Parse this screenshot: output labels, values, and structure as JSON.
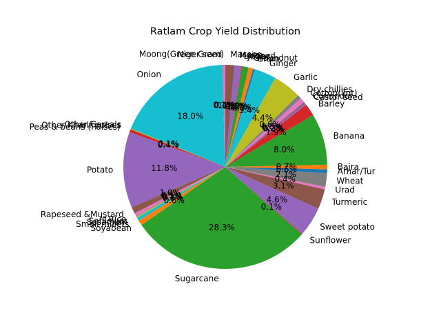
{
  "chart_data": {
    "type": "pie",
    "title": "Ratlam Crop Yield Distribution",
    "start_angle_deg": 90,
    "direction": "counterclockwise",
    "slices": [
      {
        "label": "Moong(Green Gram)",
        "value": 0.4,
        "pct_text": "0.4%",
        "color": "#e377c2"
      },
      {
        "label": "Niger seed",
        "value": 0.1,
        "pct_text": "0.1%",
        "color": "#7f7f7f"
      },
      {
        "label": "Onion",
        "value": 18.0,
        "pct_text": "18.0%",
        "color": "#17becf"
      },
      {
        "label": "Other Cereals",
        "value": 0.1,
        "pct_text": "0.1%",
        "color": "#bcbd22"
      },
      {
        "label": "Other Kharif pulses",
        "value": 0.1,
        "pct_text": "0.1%",
        "color": "#8c564b"
      },
      {
        "label": "Peas & beans (Pulses)",
        "value": 0.4,
        "pct_text": "0.4%",
        "color": "#d62728"
      },
      {
        "label": "Potato",
        "value": 11.8,
        "pct_text": "11.8%",
        "color": "#9467bd"
      },
      {
        "label": "Rapeseed &Mustard",
        "value": 1.0,
        "pct_text": "1.0%",
        "color": "#8c564b"
      },
      {
        "label": "Rice",
        "value": 0.5,
        "pct_text": "0.5%",
        "color": "#e377c2"
      },
      {
        "label": "Safflower",
        "value": 0.1,
        "pct_text": "0.1%",
        "color": "#7f7f7f"
      },
      {
        "label": "Sesamum",
        "value": 0.2,
        "pct_text": "0.2%",
        "color": "#bcbd22"
      },
      {
        "label": "Small millets",
        "value": 0.5,
        "pct_text": "0.5%",
        "color": "#17becf"
      },
      {
        "label": "Soyabean",
        "value": 0.8,
        "pct_text": "0.8%",
        "color": "#ff7f0e"
      },
      {
        "label": "Sugarcane",
        "value": 28.3,
        "pct_text": "28.3%",
        "color": "#2ca02c"
      },
      {
        "label": "Sunflower",
        "value": 0.1,
        "pct_text": "0.1%",
        "color": "#d62728"
      },
      {
        "label": "Sweet potato",
        "value": 4.6,
        "pct_text": "4.6%",
        "color": "#9467bd"
      },
      {
        "label": "Turmeric",
        "value": 3.1,
        "pct_text": "3.1%",
        "color": "#8c564b"
      },
      {
        "label": "Urad",
        "value": 0.4,
        "pct_text": "0.4%",
        "color": "#e377c2"
      },
      {
        "label": "Wheat",
        "value": 2.1,
        "pct_text": "2.1%",
        "color": "#7f7f7f"
      },
      {
        "label": "Arhar/Tur",
        "value": 0.6,
        "pct_text": "0.6%",
        "color": "#1f77b4"
      },
      {
        "label": "Bajra",
        "value": 0.7,
        "pct_text": "0.7%",
        "color": "#ff7f0e"
      },
      {
        "label": "Banana",
        "value": 8.0,
        "pct_text": "8.0%",
        "color": "#2ca02c"
      },
      {
        "label": "Barley",
        "value": 1.9,
        "pct_text": "1.9%",
        "color": "#d62728"
      },
      {
        "label": "Castor seed",
        "value": 0.3,
        "pct_text": "0.3%",
        "color": "#9467bd"
      },
      {
        "label": "Coriander",
        "value": 0.2,
        "pct_text": "0.2%",
        "color": "#8c564b"
      },
      {
        "label": "Cotton(lint)",
        "value": 0.8,
        "pct_text": "0.8%",
        "color": "#e377c2"
      },
      {
        "label": "Dry chillies",
        "value": 0.6,
        "pct_text": "0.6%",
        "color": "#7f7f7f"
      },
      {
        "label": "Garlic",
        "value": 4.4,
        "pct_text": "4.4%",
        "color": "#bcbd22"
      },
      {
        "label": "Ginger",
        "value": 3.4,
        "pct_text": "3.4%",
        "color": "#17becf"
      },
      {
        "label": "Gram",
        "value": 0.3,
        "pct_text": "0.3%",
        "color": "#1f77b4"
      },
      {
        "label": "Groundnut",
        "value": 0.7,
        "pct_text": "0.7%",
        "color": "#ff7f0e"
      },
      {
        "label": "Jowar",
        "value": 1.0,
        "pct_text": "1.0%",
        "color": "#2ca02c"
      },
      {
        "label": "Linseed",
        "value": 0.1,
        "pct_text": "0.1%",
        "color": "#d62728"
      },
      {
        "label": "Maize",
        "value": 1.1,
        "pct_text": "1.1%",
        "color": "#9467bd"
      },
      {
        "label": "Masoor",
        "value": 1.4,
        "pct_text": "1.4%",
        "color": "#8c564b"
      }
    ]
  }
}
